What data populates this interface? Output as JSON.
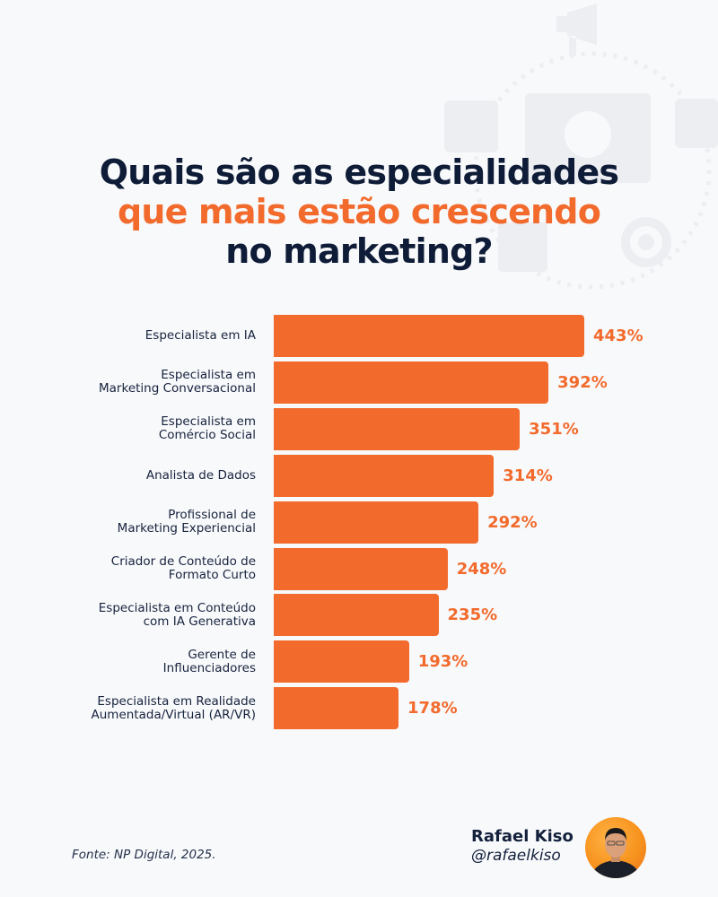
{
  "title": {
    "line1": "Quais são as especialidades",
    "line2": "que mais estão crescendo",
    "line3": "no marketing?"
  },
  "chart_data": {
    "type": "bar",
    "orientation": "horizontal",
    "title": "Quais são as especialidades que mais estão crescendo no marketing?",
    "categories": [
      "Especialista em IA",
      "Especialista em\nMarketing Conversacional",
      "Especialista em\nComércio Social",
      "Analista de Dados",
      "Profissional de\nMarketing Experiencial",
      "Criador de Conteúdo de\nFormato Curto",
      "Especialista em Conteúdo\ncom IA Generativa",
      "Gerente de\nInfluenciadores",
      "Especialista em Realidade\nAumentada/Virtual (AR/VR)"
    ],
    "values": [
      443,
      392,
      351,
      314,
      292,
      248,
      235,
      193,
      178
    ],
    "value_labels": [
      "443%",
      "392%",
      "351%",
      "314%",
      "292%",
      "248%",
      "235%",
      "193%",
      "178%"
    ],
    "unit": "%",
    "xlabel": "",
    "ylabel": "",
    "grid": false,
    "legend": "none",
    "bar_color": "#f26a2c"
  },
  "footer": {
    "source": "Fonte: NP Digital, 2025.",
    "author_name": "Rafael Kiso",
    "author_handle": "@rafaelkiso"
  },
  "colors": {
    "navy": "#0e1c37",
    "orange": "#f26a2c",
    "background": "#f8f9fb"
  }
}
